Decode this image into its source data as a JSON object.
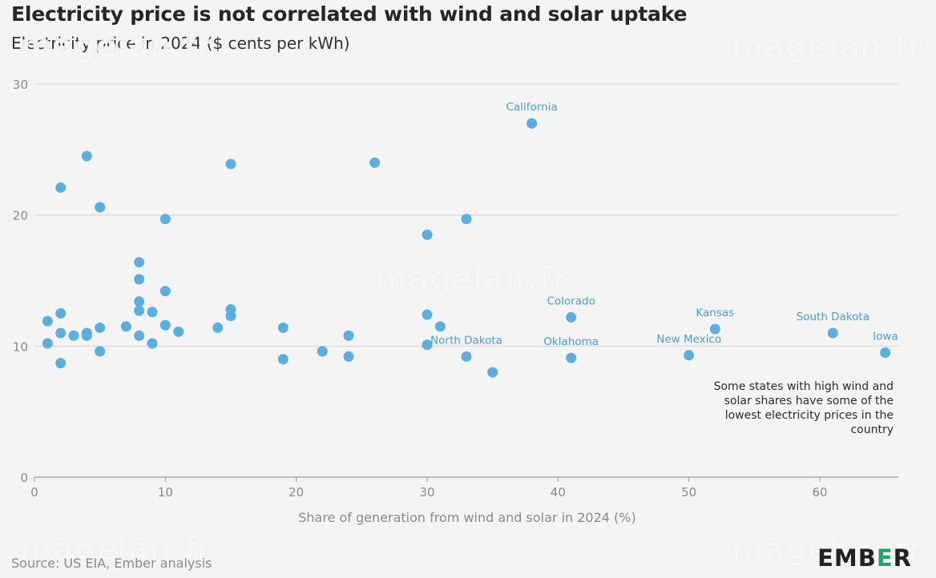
{
  "header": {
    "title": "Electricity price is not correlated with wind and solar uptake",
    "subtitle": "Electricity price in 2024 ($ cents per kWh)"
  },
  "footer": {
    "source": "Source: US EIA, Ember analysis",
    "logo_text": "EMBER"
  },
  "watermark": "magelan.fr",
  "colors": {
    "point": "#5aaee0",
    "label": "#4a9fcf",
    "grid": "#d4d4d4"
  },
  "chart_data": {
    "type": "scatter",
    "title": "Electricity price is not correlated with wind and solar uptake",
    "subtitle": "Electricity price in 2024 ($ cents per kWh)",
    "xlabel": "Share of generation from wind and solar in 2024 (%)",
    "ylabel": "",
    "xlim": [
      0,
      66
    ],
    "ylim": [
      0,
      30
    ],
    "x_ticks": [
      0,
      10,
      20,
      30,
      40,
      50,
      60
    ],
    "y_ticks": [
      0,
      10,
      20,
      30
    ],
    "grid": true,
    "annotation": "Some states with high wind and solar shares have some of the lowest electricity prices in the country",
    "points": [
      {
        "x": 1,
        "y": 11.9
      },
      {
        "x": 1,
        "y": 10.2
      },
      {
        "x": 2,
        "y": 22.1
      },
      {
        "x": 2,
        "y": 12.5
      },
      {
        "x": 2,
        "y": 11.0
      },
      {
        "x": 2,
        "y": 8.7
      },
      {
        "x": 3,
        "y": 10.8
      },
      {
        "x": 4,
        "y": 24.5
      },
      {
        "x": 4,
        "y": 11.0
      },
      {
        "x": 4,
        "y": 10.8
      },
      {
        "x": 5,
        "y": 20.6
      },
      {
        "x": 5,
        "y": 11.4
      },
      {
        "x": 5,
        "y": 9.6
      },
      {
        "x": 7,
        "y": 11.5
      },
      {
        "x": 8,
        "y": 16.4
      },
      {
        "x": 8,
        "y": 15.1
      },
      {
        "x": 8,
        "y": 13.4
      },
      {
        "x": 8,
        "y": 12.7
      },
      {
        "x": 8,
        "y": 10.8
      },
      {
        "x": 9,
        "y": 12.6
      },
      {
        "x": 9,
        "y": 10.2
      },
      {
        "x": 10,
        "y": 19.7
      },
      {
        "x": 10,
        "y": 14.2
      },
      {
        "x": 10,
        "y": 11.6
      },
      {
        "x": 11,
        "y": 11.1
      },
      {
        "x": 14,
        "y": 11.4
      },
      {
        "x": 15,
        "y": 23.9
      },
      {
        "x": 15,
        "y": 12.8
      },
      {
        "x": 15,
        "y": 12.3
      },
      {
        "x": 19,
        "y": 11.4
      },
      {
        "x": 19,
        "y": 9.0
      },
      {
        "x": 22,
        "y": 9.6
      },
      {
        "x": 24,
        "y": 10.8
      },
      {
        "x": 24,
        "y": 9.2
      },
      {
        "x": 26,
        "y": 24.0
      },
      {
        "x": 30,
        "y": 18.5
      },
      {
        "x": 30,
        "y": 12.4
      },
      {
        "x": 30,
        "y": 10.1
      },
      {
        "x": 31,
        "y": 11.5
      },
      {
        "x": 33,
        "y": 19.7
      },
      {
        "x": 33,
        "y": 9.2,
        "label": "North Dakota"
      },
      {
        "x": 35,
        "y": 8.0
      },
      {
        "x": 38,
        "y": 27.0,
        "label": "California"
      },
      {
        "x": 41,
        "y": 12.2,
        "label": "Colorado"
      },
      {
        "x": 41,
        "y": 9.1,
        "label": "Oklahoma"
      },
      {
        "x": 50,
        "y": 9.3,
        "label": "New Mexico"
      },
      {
        "x": 52,
        "y": 11.3,
        "label": "Kansas"
      },
      {
        "x": 61,
        "y": 11.0,
        "label": "South Dakota"
      },
      {
        "x": 65,
        "y": 9.5,
        "label": "Iowa"
      }
    ]
  }
}
